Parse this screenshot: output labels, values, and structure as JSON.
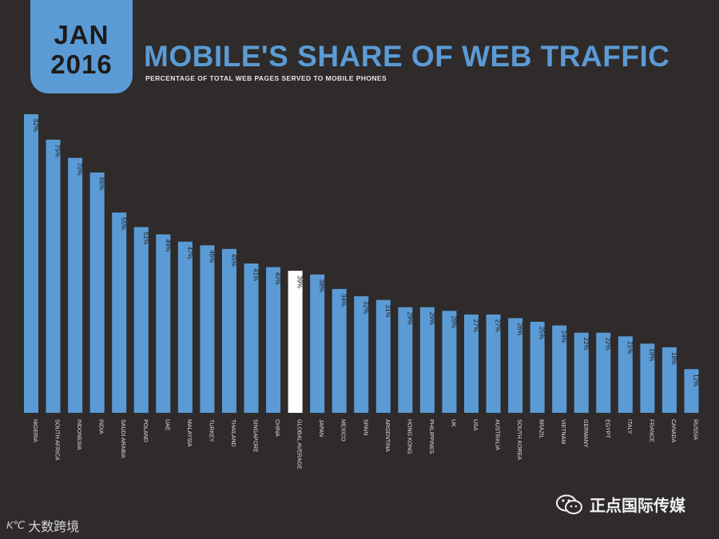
{
  "header": {
    "month": "JAN",
    "year": "2016",
    "title": "MOBILE'S SHARE OF WEB TRAFFIC",
    "subtitle": "PERCENTAGE OF TOTAL WEB PAGES SERVED TO MOBILE PHONES"
  },
  "colors": {
    "bar": "#5b9bd5",
    "highlight": "#ffffff",
    "background": "#2f2b2a"
  },
  "chart_data": {
    "type": "bar",
    "title": "MOBILE'S SHARE OF WEB TRAFFIC",
    "subtitle": "PERCENTAGE OF TOTAL WEB PAGES SERVED TO MOBILE PHONES",
    "xlabel": "",
    "ylabel": "",
    "ylim": [
      0,
      85
    ],
    "grid": false,
    "categories": [
      "NIGERIA",
      "SOUTH AFRICA",
      "INDONESIA",
      "INDIA",
      "SAUDI ARABIA",
      "POLAND",
      "UAE",
      "MALAYSIA",
      "TURKEY",
      "THAILAND",
      "SINGAPORE",
      "CHINA",
      "GLOBAL AVERAGE",
      "JAPAN",
      "MEXICO",
      "SPAIN",
      "ARGENTINA",
      "HONG KONG",
      "PHILIPPINES",
      "UK",
      "USA",
      "AUSTRALIA",
      "SOUTH KOREA",
      "BRAZIL",
      "VIETNAM",
      "GERMANY",
      "EGYPT",
      "ITALY",
      "FRANCE",
      "CANADA",
      "RUSSIA"
    ],
    "values": [
      82,
      75,
      70,
      66,
      55,
      51,
      49,
      47,
      46,
      45,
      41,
      40,
      39,
      38,
      34,
      32,
      31,
      29,
      29,
      28,
      27,
      27,
      26,
      25,
      24,
      22,
      22,
      21,
      19,
      18,
      12
    ],
    "value_labels": [
      "82%",
      "75%",
      "70%",
      "66%",
      "55%",
      "51%",
      "49%",
      "47%",
      "46%",
      "45%",
      "41%",
      "40%",
      "39%",
      "38%",
      "34%",
      "32%",
      "31%",
      "29%",
      "29%",
      "28%",
      "27%",
      "27%",
      "26%",
      "25%",
      "24%",
      "22%",
      "22%",
      "21%",
      "19%",
      "18%",
      "12%"
    ],
    "highlight_category": "GLOBAL AVERAGE"
  },
  "footer": {
    "left_logo": "K℃",
    "left_text": "大数跨境",
    "right_text": "正点国际传媒",
    "wechat_icon": "wechat-icon"
  }
}
